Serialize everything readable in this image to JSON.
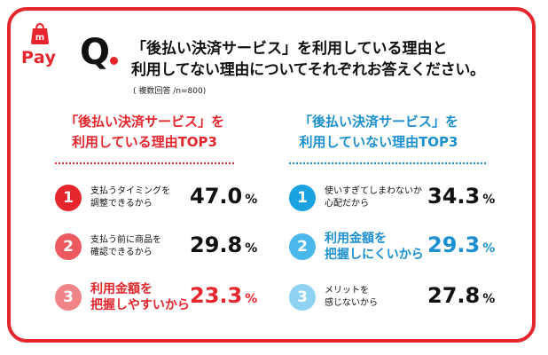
{
  "logo": {
    "text": "Pay"
  },
  "question": {
    "mark": "Q",
    "line1": "「後払い決済サービス」を利用している理由と",
    "line2": "利用してない理由についてそれぞれお答えください。",
    "note": "( 複数回答 /n=800)"
  },
  "left": {
    "title1": "「後払い決済サービス」を",
    "title2": "利用している理由TOP3",
    "items": [
      {
        "rank": "1",
        "line1": "支払うタイミングを",
        "line2": "調整できるから",
        "value": "47.0",
        "unit": "%"
      },
      {
        "rank": "2",
        "line1": "支払う前に商品を",
        "line2": "確認できるから",
        "value": "29.8",
        "unit": "%"
      },
      {
        "rank": "3",
        "line1": "利用金額を",
        "line2": "把握しやすいから",
        "value": "23.3",
        "unit": "%"
      }
    ]
  },
  "right": {
    "title1": "「後払い決済サービス」を",
    "title2": "利用していない理由TOP3",
    "items": [
      {
        "rank": "1",
        "line1": "使いすぎてしまわないか",
        "line2": "心配だから",
        "value": "34.3",
        "unit": "%"
      },
      {
        "rank": "2",
        "line1": "利用金額を",
        "line2": "把握しにくいから",
        "value": "29.3",
        "unit": "%"
      },
      {
        "rank": "3",
        "line1": "メリットを",
        "line2": "感じないから",
        "value": "27.8",
        "unit": "%"
      }
    ]
  },
  "colors": {
    "brand_red": "#e5262d",
    "red_1": "#e5262d",
    "red_2": "#ec5a5f",
    "red_3": "#f08488",
    "blue_1": "#1aa3e0",
    "blue_2": "#4ab8ea",
    "blue_3": "#8fd3f3",
    "blue_text": "#1b8fd0"
  }
}
